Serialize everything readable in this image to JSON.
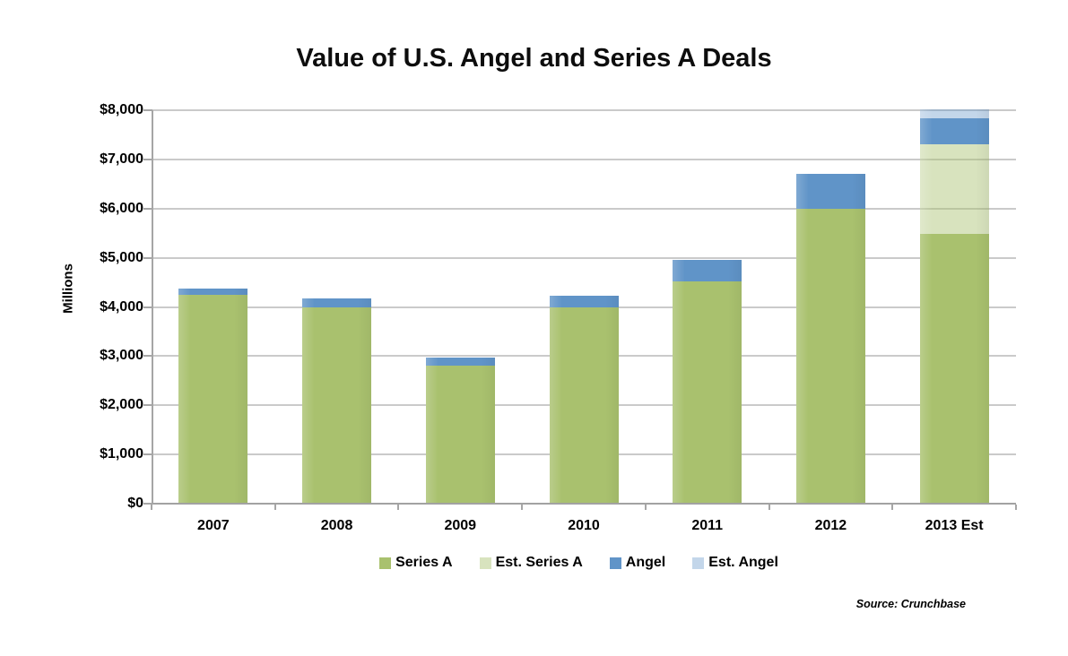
{
  "chart": {
    "title": "Value of U.S. Angel and Series A Deals",
    "y_axis_title": "Millions",
    "source_note": "Source: Crunchbase"
  },
  "chart_data": {
    "type": "bar",
    "stacked": true,
    "title": "Value of U.S. Angel and Series A Deals",
    "xlabel": "",
    "ylabel": "Millions",
    "ylim": [
      0,
      8000
    ],
    "ytick_step": 1000,
    "y_tick_labels": [
      "$0",
      "$1,000",
      "$2,000",
      "$3,000",
      "$4,000",
      "$5,000",
      "$6,000",
      "$7,000",
      "$8,000"
    ],
    "grid": true,
    "legend_position": "bottom",
    "categories": [
      "2007",
      "2008",
      "2009",
      "2010",
      "2011",
      "2012",
      "2013 Est"
    ],
    "series": [
      {
        "name": "Series A",
        "color": "#a9c16e",
        "values": [
          4220,
          3975,
          2780,
          3975,
          4500,
          5975,
          5470
        ]
      },
      {
        "name": "Est. Series A",
        "color": "rgba(169,193,110,0.45)",
        "values": [
          0,
          0,
          0,
          0,
          0,
          0,
          1825
        ]
      },
      {
        "name": "Angel",
        "color": "#6094c8",
        "values": [
          140,
          180,
          175,
          235,
          440,
          715,
          520
        ]
      },
      {
        "name": "Est. Angel",
        "color": "rgba(96,148,200,0.38)",
        "values": [
          0,
          0,
          0,
          0,
          0,
          0,
          180
        ]
      }
    ],
    "totals": [
      4360,
      4155,
      2955,
      4210,
      4940,
      6690,
      7995
    ]
  }
}
